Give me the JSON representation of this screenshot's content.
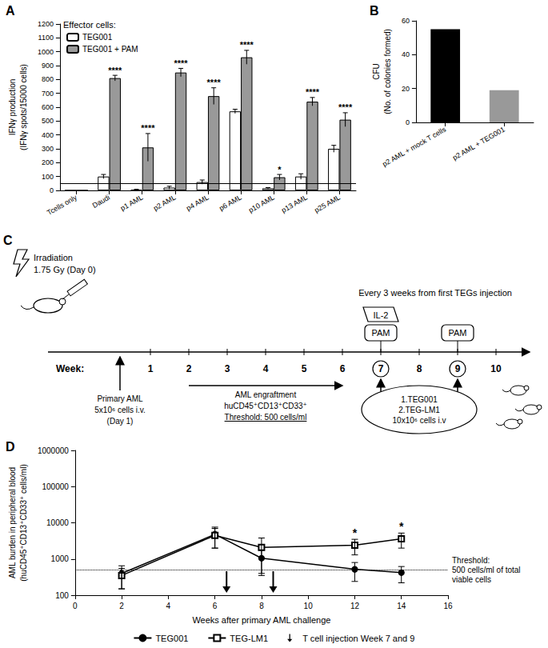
{
  "chart_data": [
    {
      "type": "bar",
      "title": "A",
      "legend_title": "Effector cells:",
      "y_label": "IFNγ production\n(IFNγ spots/15000 cells)",
      "categories": [
        "Tcells only",
        "Daudi",
        "p1 AML",
        "p2 AML",
        "p4 AML",
        "p6 AML",
        "p10 AML",
        "p13 AML",
        "p25 AML"
      ],
      "series": [
        {
          "name": "TEG001",
          "color": "#ffffff",
          "values": [
            0,
            100,
            5,
            20,
            60,
            570,
            15,
            100,
            300
          ],
          "errors": [
            0,
            15,
            3,
            10,
            15,
            15,
            5,
            20,
            25
          ]
        },
        {
          "name": "TEG001 + PAM",
          "color": "#999999",
          "values": [
            0,
            810,
            310,
            850,
            680,
            960,
            95,
            640,
            510
          ],
          "errors": [
            0,
            20,
            100,
            30,
            60,
            50,
            20,
            30,
            50
          ]
        }
      ],
      "annotations": [
        {
          "category": "Daudi",
          "series": "TEG001 + PAM",
          "text": "****"
        },
        {
          "category": "p1 AML",
          "series": "TEG001 + PAM",
          "text": "****"
        },
        {
          "category": "p2 AML",
          "series": "TEG001 + PAM",
          "text": "****"
        },
        {
          "category": "p4 AML",
          "series": "TEG001 + PAM",
          "text": "****"
        },
        {
          "category": "p6 AML",
          "series": "TEG001 + PAM",
          "text": "****"
        },
        {
          "category": "p10 AML",
          "series": "TEG001 + PAM",
          "text": "*"
        },
        {
          "category": "p13 AML",
          "series": "TEG001 + PAM",
          "text": "****"
        },
        {
          "category": "p25 AML",
          "series": "TEG001 + PAM",
          "text": "****"
        }
      ],
      "threshold": 50,
      "ylim": [
        0,
        1200
      ],
      "yticks": [
        0,
        100,
        200,
        300,
        400,
        500,
        600,
        700,
        800,
        900,
        1000,
        1100,
        1200
      ],
      "grid": false,
      "legend": "top-left"
    },
    {
      "type": "bar",
      "title": "B",
      "y_label": "CFU\n(No. of colonies formed)",
      "categories": [
        "p2 AML + mock T cells",
        "p2 AML + TEG001"
      ],
      "values": [
        55,
        19
      ],
      "colors": [
        "#000000",
        "#999999"
      ],
      "ylim": [
        0,
        60
      ],
      "yticks": [
        0,
        20,
        40,
        60
      ],
      "grid": false
    },
    {
      "type": "line",
      "title": "D",
      "x_label": "Weeks after primary AML challenge",
      "y_label": "AML burden in peripheral blood\n(huCD45⁺CD13⁺CD33⁺ cells/ml)",
      "x": [
        2,
        6,
        8,
        12,
        14
      ],
      "series": [
        {
          "name": "TEG001",
          "color": "#000000",
          "marker": "circle",
          "values": [
            400,
            4800,
            1050,
            520,
            420
          ],
          "errors": [
            250,
            2800,
            700,
            280,
            200
          ]
        },
        {
          "name": "TEG-LM1",
          "color": "#000000",
          "marker": "open-square",
          "values": [
            350,
            4500,
            2100,
            2400,
            3600
          ],
          "errors": [
            200,
            2500,
            1700,
            1100,
            1600
          ]
        }
      ],
      "annotations": [
        {
          "x": 12,
          "series": "TEG-LM1",
          "text": "*"
        },
        {
          "x": 14,
          "series": "TEG-LM1",
          "text": "*"
        }
      ],
      "threshold": {
        "value": 500,
        "label": "Threshold:\n500 cells/ml of total\nviable cells"
      },
      "injections": {
        "x": [
          6.5,
          8.5
        ],
        "label": "T cell injection Week 7 and 9"
      },
      "xlim": [
        0,
        16
      ],
      "xticks": [
        0,
        2,
        4,
        6,
        8,
        10,
        12,
        14,
        16
      ],
      "ylim": [
        100,
        1000000
      ],
      "yticks": [
        100,
        1000,
        10000,
        100000,
        1000000
      ],
      "log": "y",
      "grid": false,
      "legend": "bottom"
    }
  ],
  "diagram": {
    "title": "C",
    "week_label": "Week:",
    "weeks": [
      1,
      2,
      3,
      4,
      5,
      6,
      7,
      8,
      9,
      10
    ],
    "circled_weeks": [
      7,
      9
    ],
    "irradiation": [
      "Irradiation",
      "1.75 Gy (Day 0)"
    ],
    "challenge": [
      "Primary AML",
      "5x10⁶ cells i.v.",
      "(Day 1)"
    ],
    "engraftment": {
      "weeks": [
        2,
        6
      ],
      "lines": [
        "AML engraftment",
        "huCD45⁺CD13⁺CD33⁺",
        "Threshold: 500 cells/ml"
      ]
    },
    "schedule_note": "Every 3 weeks from first TEGs injection",
    "cytokine": {
      "week": 7,
      "label": "IL-2"
    },
    "pam": [
      {
        "week": 7,
        "label": "PAM"
      },
      {
        "week": 9,
        "label": "PAM"
      }
    ],
    "treatment": {
      "weeks": [
        7,
        9
      ],
      "lines": [
        "1.TEG001",
        "2.TEG-LM1",
        "10x10⁶ cells i.v"
      ]
    }
  }
}
